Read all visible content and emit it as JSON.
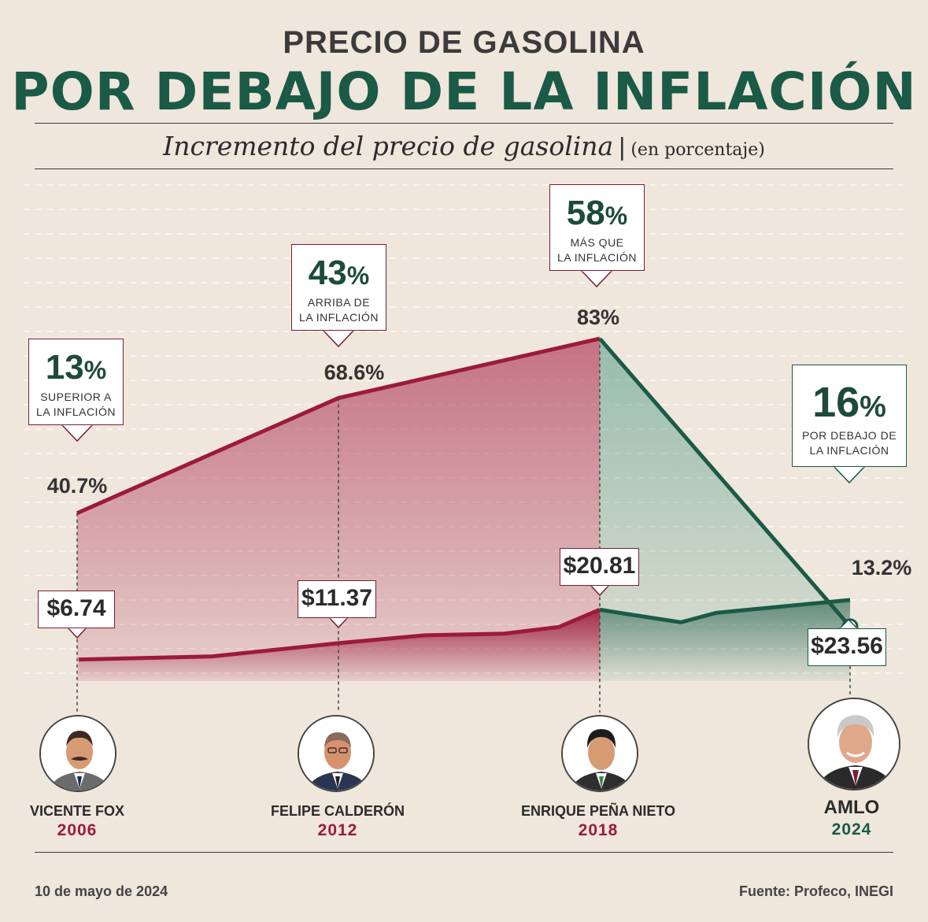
{
  "header": {
    "title_top": "PRECIO DE GASOLINA",
    "title_main": "POR DEBAJO DE LA INFLACIÓN",
    "subtitle": "Incremento del precio de gasolina",
    "subtitle_sep": "|",
    "subtitle_unit": "(en porcentaje)"
  },
  "colors": {
    "red": "#9b1b3a",
    "green": "#1a5a46",
    "bg": "#efe6dc"
  },
  "chart_data": {
    "type": "area",
    "title": "Incremento del precio de gasolina (en porcentaje)",
    "categories": [
      "2006",
      "2012",
      "2018",
      "2024"
    ],
    "series": [
      {
        "name": "Incremento del precio de gasolina (%)",
        "values": [
          40.7,
          68.6,
          83,
          13.2
        ],
        "labels": [
          "40.7%",
          "68.6%",
          "83%",
          "13.2%"
        ]
      },
      {
        "name": "Precio gasolina ($)",
        "values": [
          6.74,
          11.37,
          20.81,
          23.56
        ],
        "labels": [
          "$6.74",
          "$11.37",
          "$20.81",
          "$23.56"
        ]
      }
    ],
    "ylim": [
      0,
      100
    ]
  },
  "callouts": [
    {
      "big": "13",
      "pct": "%",
      "line1": "SUPERIOR A",
      "line2": "LA INFLACIÓN"
    },
    {
      "big": "43",
      "pct": "%",
      "line1": "ARRIBA DE",
      "line2": "LA INFLACIÓN"
    },
    {
      "big": "58",
      "pct": "%",
      "line1": "MÁS QUE",
      "line2": "LA INFLACIÓN"
    },
    {
      "big": "16",
      "pct": "%",
      "line1": "POR DEBAJO DE",
      "line2": "LA INFLACIÓN"
    }
  ],
  "presidents": [
    {
      "name": "VICENTE FOX",
      "year": "2006"
    },
    {
      "name": "FELIPE CALDERÓN",
      "year": "2012"
    },
    {
      "name": "ENRIQUE PEÑA NIETO",
      "year": "2018"
    },
    {
      "name": "AMLO",
      "year": "2024"
    }
  ],
  "footer": {
    "date": "10 de mayo de 2024",
    "source": "Fuente: Profeco, INEGI"
  }
}
